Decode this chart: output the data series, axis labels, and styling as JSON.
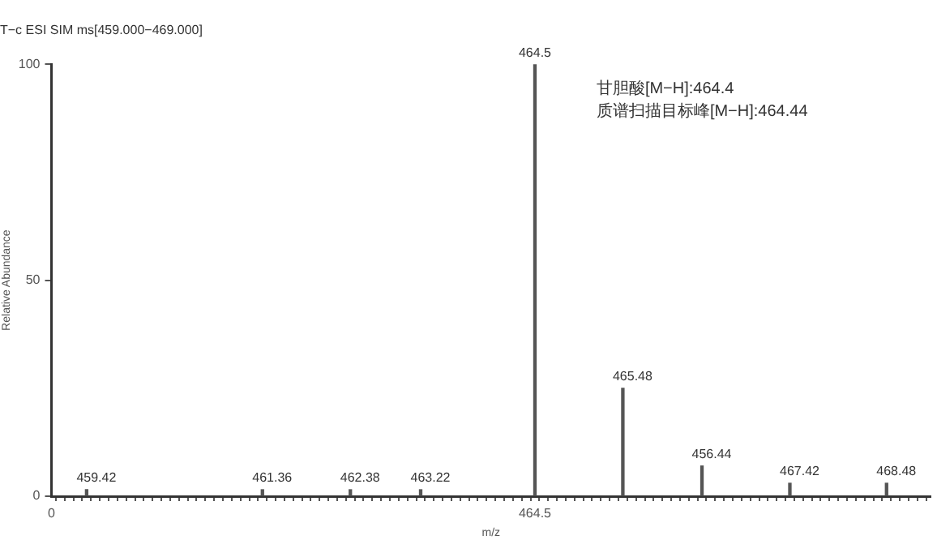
{
  "chart_data": {
    "type": "bar",
    "title": "T−c ESI SIM ms[459.000−469.000]",
    "xlabel": "m/z",
    "ylabel": "Relative Abundance",
    "categories": [
      "0",
      null,
      null,
      null,
      null,
      null,
      null,
      null,
      null,
      null,
      null,
      null,
      null,
      null,
      null,
      null,
      null,
      null,
      null,
      null,
      null,
      null,
      null,
      null,
      null,
      null,
      null,
      null,
      null,
      null,
      null,
      null,
      null,
      null,
      null,
      null,
      null,
      null,
      null,
      null,
      null,
      null,
      null,
      null,
      null,
      null,
      null,
      null,
      null,
      null,
      null,
      null,
      null,
      null,
      null,
      "464.5",
      null,
      null,
      null,
      null,
      null,
      null,
      null,
      null,
      null,
      null,
      null,
      null,
      null,
      null,
      null,
      null,
      null,
      null,
      null,
      null,
      null,
      null,
      null,
      null,
      null,
      null,
      null,
      null,
      null,
      null,
      null,
      null,
      null,
      null,
      null,
      null,
      null,
      null,
      null,
      null,
      null,
      null,
      null,
      null,
      null
    ],
    "values": [
      null,
      null,
      null,
      null,
      1.5,
      null,
      null,
      null,
      null,
      null,
      null,
      null,
      null,
      null,
      null,
      null,
      null,
      null,
      null,
      null,
      null,
      null,
      null,
      null,
      1.5,
      null,
      null,
      null,
      null,
      null,
      null,
      null,
      null,
      null,
      1.5,
      null,
      null,
      null,
      null,
      null,
      null,
      null,
      1.5,
      null,
      null,
      null,
      null,
      null,
      null,
      null,
      null,
      null,
      null,
      null,
      null,
      100,
      null,
      null,
      null,
      null,
      null,
      null,
      null,
      null,
      null,
      25,
      null,
      null,
      null,
      null,
      null,
      null,
      null,
      null,
      7,
      null,
      null,
      null,
      null,
      null,
      null,
      null,
      null,
      null,
      3,
      null,
      null,
      null,
      null,
      null,
      null,
      null,
      null,
      null,
      null,
      3,
      null,
      null,
      null,
      null,
      null
    ],
    "color": "#555555",
    "ylim": [
      0,
      100
    ],
    "yticks": [
      0,
      50,
      100
    ],
    "grid": false,
    "annotations": [
      "甘胆酸[M−H]:464.4",
      "质谱扫描目标峰[M−H]:464.44",
      {
        "text": "459.42",
        "y": 1.5
      },
      {
        "text": "461.36",
        "y": 1.5
      },
      {
        "text": "462.38",
        "y": 1.5
      },
      {
        "text": "463.22",
        "y": 1.5
      },
      {
        "text": "464.5",
        "y": 100
      },
      {
        "text": "465.48",
        "y": 25
      },
      {
        "text": "456.44",
        "y": 7
      },
      {
        "text": "467.42",
        "y": 3
      },
      {
        "text": "468.48",
        "y": 3
      }
    ]
  }
}
